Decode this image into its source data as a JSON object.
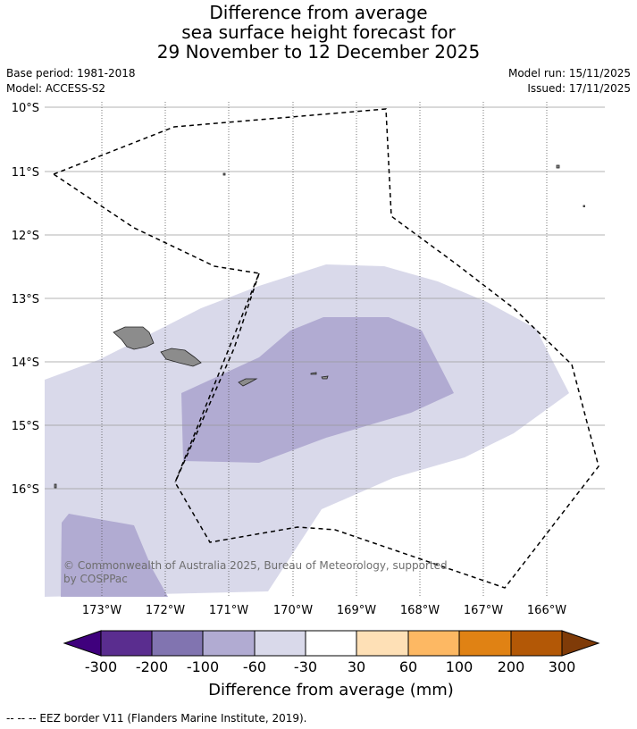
{
  "title": {
    "line1": "Difference from average",
    "line2": "sea surface height forecast for",
    "line3": "29 November to 12 December 2025"
  },
  "meta": {
    "base_period": "Base period: 1981-2018",
    "model": "Model: ACCESS-S2",
    "model_run": "Model run: 15/11/2025",
    "issued": "Issued: 17/11/2025"
  },
  "map": {
    "lat_labels": [
      "10°S",
      "11°S",
      "12°S",
      "13°S",
      "14°S",
      "15°S",
      "16°S"
    ],
    "lon_labels": [
      "173°W",
      "172°W",
      "171°W",
      "170°W",
      "169°W",
      "168°W",
      "167°W",
      "166°W"
    ],
    "copyright": "© Commonwealth of Australia 2025, Bureau of Meteorology, supported by COSPPac",
    "colors": {
      "land": "#8c8c8c",
      "band_-60_-30": "#d9d9ea",
      "band_-100_-60": "#b1abd2"
    }
  },
  "colorbar": {
    "title": "Difference from average (mm)",
    "tick_labels": [
      "-300",
      "-200",
      "-100",
      "-60",
      "-30",
      "30",
      "60",
      "100",
      "200",
      "300"
    ],
    "colors": [
      "#3f007d",
      "#5a2d8f",
      "#8174b0",
      "#b1abd2",
      "#d9d9ea",
      "#ffffff",
      "#fee0b6",
      "#fdb863",
      "#e08214",
      "#b35806",
      "#7f3b08"
    ]
  },
  "footnote": "--  --  -- EEZ border V11 (Flanders Marine Institute, 2019)."
}
